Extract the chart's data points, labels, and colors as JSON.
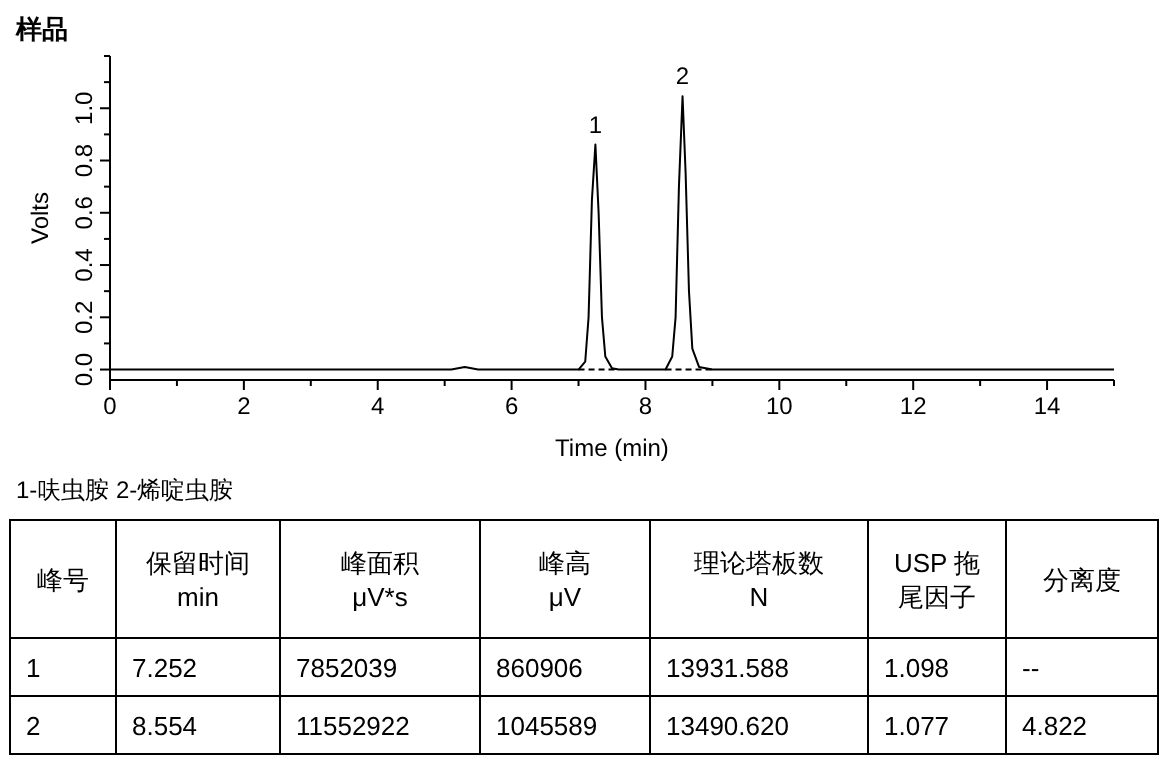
{
  "chart_data": [
    {
      "type": "line",
      "title": "样品",
      "xlabel": "Time (min)",
      "ylabel": "Volts",
      "xlim": [
        0,
        15
      ],
      "ylim": [
        -0.04,
        1.2
      ],
      "xticks": [
        0,
        {
          "value": 1,
          "label": null
        },
        2,
        {
          "value": 3,
          "label": null
        },
        4,
        {
          "value": 5,
          "label": null
        },
        6,
        {
          "value": 7,
          "label": null
        },
        8,
        {
          "value": 9,
          "label": null
        },
        10,
        {
          "value": 11,
          "label": null
        },
        12,
        {
          "value": 13,
          "label": null
        },
        14,
        {
          "value": 15,
          "label": null
        }
      ],
      "yticks": [
        {
          "value": 0,
          "label": "0.0"
        },
        {
          "value": 0.1,
          "label": null
        },
        0.2,
        {
          "value": 0.3,
          "label": null
        },
        0.4,
        {
          "value": 0.5,
          "label": null
        },
        0.6,
        {
          "value": 0.7,
          "label": null
        },
        0.8,
        {
          "value": 0.9,
          "label": null
        },
        {
          "value": 1,
          "label": "1.0"
        },
        {
          "value": 1.1,
          "label": null
        },
        {
          "value": 1.2,
          "label": null
        }
      ],
      "series": [
        {
          "color": "#000000",
          "x": [
            0,
            5.1,
            5.2,
            5.3,
            5.4,
            5.5,
            7.0,
            7.1,
            7.15,
            7.2,
            7.252,
            7.3,
            7.35,
            7.4,
            7.5,
            7.6,
            8.3,
            8.4,
            8.45,
            8.5,
            8.554,
            8.6,
            8.65,
            8.7,
            8.8,
            9.0,
            15
          ],
          "values": [
            0,
            0,
            0.005,
            0.01,
            0.005,
            0,
            0,
            0.03,
            0.2,
            0.65,
            0.861,
            0.6,
            0.2,
            0.05,
            0.005,
            0,
            0,
            0.05,
            0.2,
            0.7,
            1.046,
            0.75,
            0.3,
            0.08,
            0.01,
            0,
            0
          ]
        },
        {
          "color": "#000000",
          "line_style": "dashed",
          "x": [
            7.0,
            7.6
          ],
          "values": [
            0,
            0
          ]
        },
        {
          "color": "#000000",
          "line_style": "dashed",
          "x": [
            8.3,
            9.0
          ],
          "values": [
            0,
            0
          ]
        }
      ],
      "annotations": [
        {
          "text": "1",
          "x": 7.252,
          "y": 0.861
        },
        {
          "text": "2",
          "x": 8.554,
          "y": 1.046
        },
        "1-呋虫胺    2-烯啶虫胺"
      ]
    },
    {
      "type": "other",
      "annotations": [
        "峰号",
        "保留时间\nmin",
        "峰面积\nμV*s",
        "峰高\nμV",
        "理论塔板数\nN",
        "USP 拖尾因子",
        "分离度",
        "1",
        "7.252",
        "7852039",
        "860906",
        "13931.588",
        "1.098",
        "--",
        "2",
        "8.554",
        "11552922",
        "1045589",
        "13490.620",
        "1.077",
        "4.822"
      ]
    }
  ]
}
